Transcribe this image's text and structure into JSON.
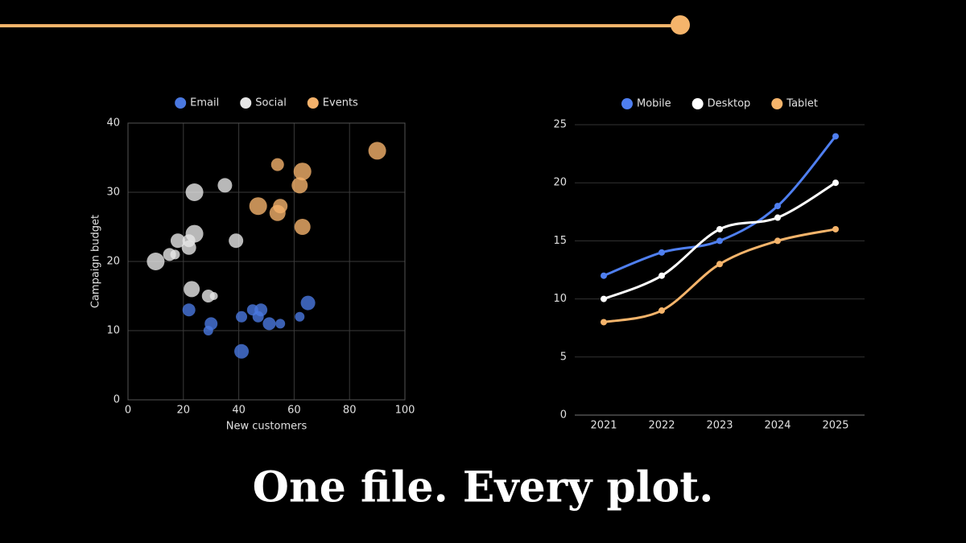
{
  "heading": "One file. Every plot.",
  "chart_data": [
    {
      "type": "scatter",
      "xlabel": "New customers",
      "ylabel": "Campaign budget",
      "xlim": [
        0,
        100
      ],
      "xticks": [
        0,
        20,
        40,
        60,
        80,
        100
      ],
      "ylim": [
        0,
        40
      ],
      "yticks": [
        0,
        10,
        20,
        30,
        40
      ],
      "grid": true,
      "legend": "top",
      "series": [
        {
          "name": "Email",
          "color": "#4a78e0",
          "x": [
            22,
            29,
            30,
            41,
            41,
            45,
            47,
            48,
            51,
            55,
            62,
            65
          ],
          "y": [
            13,
            10,
            11,
            7,
            12,
            13,
            12,
            13,
            11,
            11,
            12,
            14
          ],
          "size": [
            8,
            6,
            8,
            9,
            7,
            7,
            7,
            8,
            8,
            6,
            6,
            9
          ]
        },
        {
          "name": "Social",
          "color": "#e6e6e6",
          "x": [
            10,
            15,
            17,
            18,
            22,
            22,
            24,
            23,
            29,
            31,
            24,
            35,
            39
          ],
          "y": [
            20,
            21,
            21,
            23,
            23,
            22,
            24,
            16,
            15,
            15,
            30,
            31,
            23
          ],
          "size": [
            11,
            8,
            6,
            9,
            8,
            9,
            11,
            10,
            8,
            5,
            11,
            9,
            9
          ]
        },
        {
          "name": "Events",
          "color": "#f4b26b",
          "x": [
            47,
            54,
            55,
            54,
            62,
            63,
            63,
            90
          ],
          "y": [
            28,
            34,
            28,
            27,
            31,
            33,
            25,
            36
          ],
          "size": [
            11,
            8,
            9,
            10,
            10,
            11,
            10,
            11
          ]
        }
      ]
    },
    {
      "type": "line",
      "categories": [
        "2021",
        "2022",
        "2023",
        "2024",
        "2025"
      ],
      "ylim": [
        0,
        25
      ],
      "yticks": [
        0,
        5,
        10,
        15,
        20,
        25
      ],
      "grid": true,
      "legend": "top",
      "series": [
        {
          "name": "Mobile",
          "color": "#4f7ff0",
          "values": [
            12,
            14,
            15,
            18,
            24
          ]
        },
        {
          "name": "Desktop",
          "color": "#ffffff",
          "values": [
            10,
            12,
            16,
            17,
            20
          ]
        },
        {
          "name": "Tablet",
          "color": "#f5b46b",
          "values": [
            8,
            9,
            13,
            15,
            16
          ]
        }
      ]
    }
  ]
}
